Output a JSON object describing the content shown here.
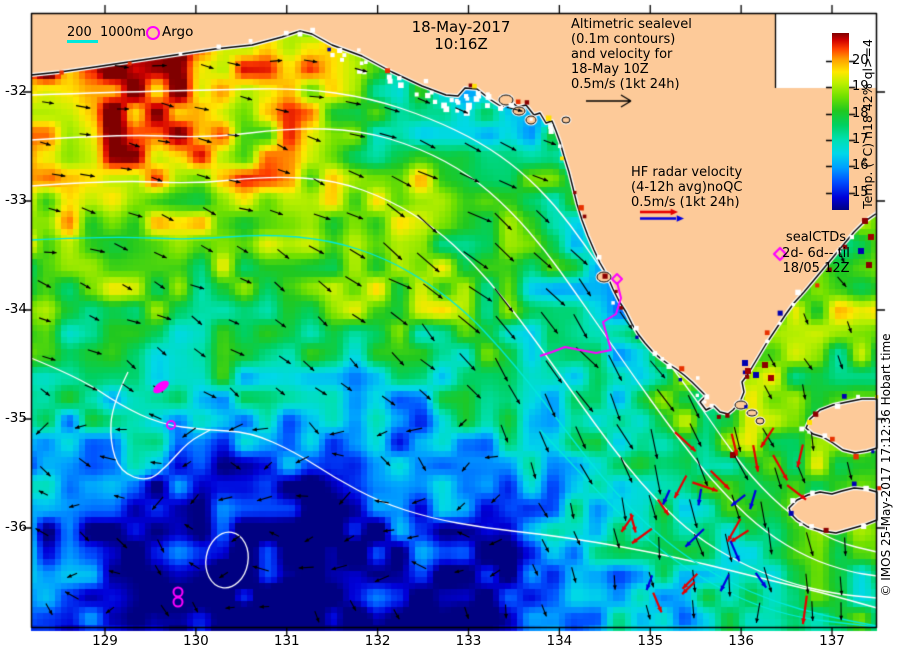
{
  "figure": {
    "title_date": "18-May-2017",
    "title_time": "10:16Z",
    "copyright": "© IMOS 25-May-2017 17:12:36 Hobart time"
  },
  "legend": {
    "depth_200": "200",
    "depth_1000": "1000m",
    "argo_label": "Argo",
    "argo_marker": "magenta-open-circle",
    "seal_marker": "magenta-open-diamond"
  },
  "annotations": {
    "altimetric": {
      "lines": [
        "Altimetric sealevel",
        "(0.1m contours)",
        "and velocity for",
        "18-May 10Z",
        "0.5m/s (1kt 24h)"
      ],
      "scale_arrow": "black-right-arrow"
    },
    "hf_radar": {
      "lines": [
        "HF radar velocity",
        "(4-12h avg)noQC",
        "0.5m/s (1kt 24h)"
      ],
      "scale_arrows": [
        "red-right-arrow",
        "blue-right-arrow"
      ]
    },
    "seal_ctd": {
      "lines": [
        "sealCTDs",
        "2d- 6d-- til",
        "18/05 12Z"
      ]
    }
  },
  "colorbar": {
    "label": "Temp. (°C) n18 42% ql>=4",
    "tick_values": [
      20,
      19,
      18,
      17,
      16,
      15
    ],
    "value_range": [
      14.35,
      21.05
    ],
    "palette_stops": [
      [
        0.0,
        "#000082"
      ],
      [
        0.07,
        "#0000D8"
      ],
      [
        0.16,
        "#0050FF"
      ],
      [
        0.24,
        "#00A0FF"
      ],
      [
        0.32,
        "#00D8E8"
      ],
      [
        0.4,
        "#00E0B0"
      ],
      [
        0.48,
        "#00D060"
      ],
      [
        0.56,
        "#20C820"
      ],
      [
        0.64,
        "#70E000"
      ],
      [
        0.72,
        "#C0F000"
      ],
      [
        0.78,
        "#FFE800"
      ],
      [
        0.85,
        "#FFA000"
      ],
      [
        0.91,
        "#FF4000"
      ],
      [
        0.96,
        "#D00000"
      ],
      [
        1.0,
        "#800000"
      ]
    ]
  },
  "axes": {
    "lon_ticks": [
      129,
      130,
      131,
      132,
      133,
      134,
      135,
      136,
      137
    ],
    "lat_ticks": [
      -32,
      -33,
      -34,
      -35,
      -36
    ]
  },
  "colors": {
    "land": "#FDCA99",
    "page_bg": "#FFFFFF",
    "frame": "#000000",
    "sealevel_contour": "#FFFFFF",
    "bathy_contour": "#00E8DC",
    "current_arrow": "#000000",
    "hf_red": "#E60000",
    "hf_blue": "#0000E0",
    "track_magenta": "#FF00FF",
    "inset_box": "#FFFFFF"
  }
}
